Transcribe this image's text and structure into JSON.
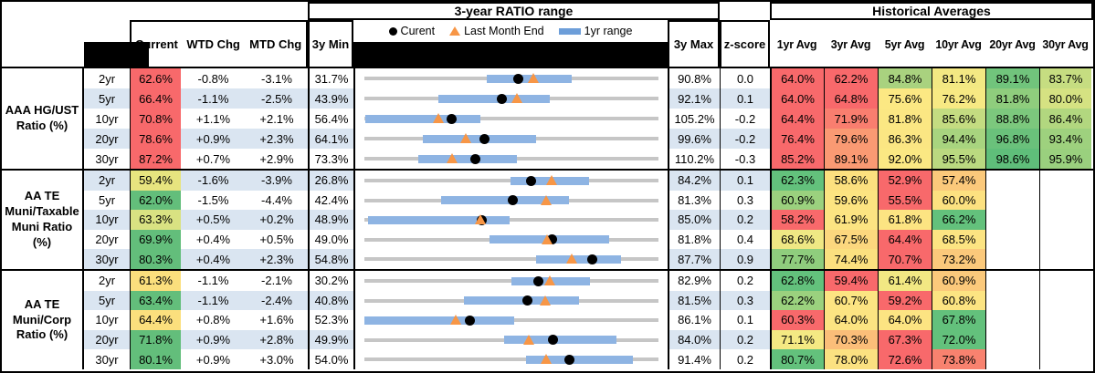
{
  "header": {
    "chart_section_title": "3-year RATIO range",
    "hist_section_title": "Historical Averages",
    "col_current": "Current",
    "col_wtd": "WTD Chg",
    "col_mtd": "MTD Chg",
    "col_3y_min": "3y Min",
    "col_3y_max": "3y Max",
    "col_zscore": "z-score",
    "avg_cols": [
      "1yr Avg",
      "3yr Avg",
      "5yr Avg",
      "10yr Avg",
      "20yr Avg",
      "30yr Avg"
    ],
    "legend": {
      "current": "Curent",
      "last_month": "Last Month End",
      "range": "1yr range"
    }
  },
  "colors": {
    "stripe_blue": "#DAE5F1",
    "range_bar_blue": "#8EB4E3",
    "track_gray": "#C6C6C6",
    "current_dot": "#000000",
    "last_month_triangle": "#F79646",
    "heat_red": "#F8696B",
    "heat_yellow": "#FCE482",
    "heat_green": "#63BE7B"
  },
  "chart_data": {
    "type": "table",
    "embedded_chart_type": "range-dot",
    "description": "Per row: gray track spans 3y Min to 3y Max, blue bar = 1yr range, black dot = Current, orange triangle = Last Month End (Current minus MTD Chg)",
    "groups": [
      {
        "label": "AAA HG/UST Ratio (%)",
        "rows": [
          {
            "tenor": "2yr",
            "current": "62.6%",
            "current_bg": "#F8696B",
            "wtd": "-0.8%",
            "mtd": "-3.1%",
            "min3y": "31.7%",
            "max3y": "90.8%",
            "zscore": "0.0",
            "range1y": [
              56.2,
              73.4
            ],
            "avgs": [
              {
                "v": "64.0%",
                "bg": "#F8696B"
              },
              {
                "v": "62.2%",
                "bg": "#F8696B"
              },
              {
                "v": "84.8%",
                "bg": "#A9D27F"
              },
              {
                "v": "81.1%",
                "bg": "#F3E883"
              },
              {
                "v": "89.1%",
                "bg": "#71C47C"
              },
              {
                "v": "83.7%",
                "bg": "#C6DD81"
              }
            ]
          },
          {
            "tenor": "5yr",
            "current": "66.4%",
            "current_bg": "#F8696B",
            "wtd": "-1.1%",
            "mtd": "-2.5%",
            "min3y": "43.9%",
            "max3y": "92.1%",
            "zscore": "0.1",
            "range1y": [
              56.0,
              74.3
            ],
            "avgs": [
              {
                "v": "64.0%",
                "bg": "#F8696B"
              },
              {
                "v": "64.8%",
                "bg": "#F8696B"
              },
              {
                "v": "75.6%",
                "bg": "#FCE883"
              },
              {
                "v": "76.2%",
                "bg": "#F7E983"
              },
              {
                "v": "81.8%",
                "bg": "#8FCD7D"
              },
              {
                "v": "80.0%",
                "bg": "#D5E282"
              }
            ]
          },
          {
            "tenor": "10yr",
            "current": "70.8%",
            "current_bg": "#F8696B",
            "wtd": "+1.1%",
            "mtd": "+2.1%",
            "min3y": "56.4%",
            "max3y": "105.2%",
            "zscore": "-0.2",
            "range1y": [
              56.5,
              75.6
            ],
            "avgs": [
              {
                "v": "64.4%",
                "bg": "#F8696B"
              },
              {
                "v": "71.9%",
                "bg": "#F97E6F"
              },
              {
                "v": "81.8%",
                "bg": "#FBE783"
              },
              {
                "v": "85.6%",
                "bg": "#C4DC81"
              },
              {
                "v": "88.8%",
                "bg": "#7CC87D"
              },
              {
                "v": "86.4%",
                "bg": "#B2D77F"
              }
            ]
          },
          {
            "tenor": "20yr",
            "current": "78.6%",
            "current_bg": "#F8696B",
            "wtd": "+0.9%",
            "mtd": "+2.3%",
            "min3y": "64.1%",
            "max3y": "99.6%",
            "zscore": "-0.2",
            "range1y": [
              71.1,
              84.8
            ],
            "avgs": [
              {
                "v": "76.4%",
                "bg": "#F8696B"
              },
              {
                "v": "79.6%",
                "bg": "#FA9A73"
              },
              {
                "v": "86.3%",
                "bg": "#FBE683"
              },
              {
                "v": "94.4%",
                "bg": "#A8D47F"
              },
              {
                "v": "96.8%",
                "bg": "#6AC17B"
              },
              {
                "v": "93.4%",
                "bg": "#9ED17E"
              }
            ]
          },
          {
            "tenor": "30yr",
            "current": "87.2%",
            "current_bg": "#F8696B",
            "wtd": "+0.7%",
            "mtd": "+2.9%",
            "min3y": "73.3%",
            "max3y": "110.2%",
            "zscore": "-0.3",
            "range1y": [
              80.0,
              92.4
            ],
            "avgs": [
              {
                "v": "85.2%",
                "bg": "#F8696B"
              },
              {
                "v": "89.1%",
                "bg": "#FA9A73"
              },
              {
                "v": "92.0%",
                "bg": "#FBE883"
              },
              {
                "v": "95.5%",
                "bg": "#BAD980"
              },
              {
                "v": "98.6%",
                "bg": "#5FBE7A"
              },
              {
                "v": "95.9%",
                "bg": "#9AD07E"
              }
            ]
          }
        ]
      },
      {
        "label": "AA TE Muni/Taxable Muni Ratio (%)",
        "rows": [
          {
            "tenor": "2yr",
            "current": "59.4%",
            "current_bg": "#E7E47F",
            "wtd": "-1.6%",
            "mtd": "-3.9%",
            "min3y": "26.8%",
            "max3y": "84.2%",
            "zscore": "0.1",
            "range1y": [
              55.4,
              70.6
            ],
            "avgs": [
              {
                "v": "62.3%",
                "bg": "#63C17C"
              },
              {
                "v": "58.6%",
                "bg": "#FCE07F"
              },
              {
                "v": "52.9%",
                "bg": "#F8696B"
              },
              {
                "v": "57.4%",
                "bg": "#FBC97B"
              },
              {
                "v": "",
                "bg": ""
              },
              {
                "v": "",
                "bg": ""
              }
            ]
          },
          {
            "tenor": "5yr",
            "current": "62.0%",
            "current_bg": "#63BE7B",
            "wtd": "-1.5%",
            "mtd": "-4.4%",
            "min3y": "42.4%",
            "max3y": "81.3%",
            "zscore": "0.3",
            "range1y": [
              52.6,
              69.5
            ],
            "avgs": [
              {
                "v": "60.9%",
                "bg": "#9BD17E"
              },
              {
                "v": "59.6%",
                "bg": "#FCE481"
              },
              {
                "v": "55.5%",
                "bg": "#F8696B"
              },
              {
                "v": "60.0%",
                "bg": "#FCE180"
              },
              {
                "v": "",
                "bg": ""
              },
              {
                "v": "",
                "bg": ""
              }
            ]
          },
          {
            "tenor": "10yr",
            "current": "63.3%",
            "current_bg": "#D9E282",
            "wtd": "+0.5%",
            "mtd": "+0.2%",
            "min3y": "48.9%",
            "max3y": "85.0%",
            "zscore": "0.2",
            "range1y": [
              49.3,
              66.7
            ],
            "avgs": [
              {
                "v": "58.2%",
                "bg": "#F8696B"
              },
              {
                "v": "61.9%",
                "bg": "#FCE482"
              },
              {
                "v": "61.8%",
                "bg": "#FCE482"
              },
              {
                "v": "66.2%",
                "bg": "#63C17C"
              },
              {
                "v": "",
                "bg": ""
              },
              {
                "v": "",
                "bg": ""
              }
            ]
          },
          {
            "tenor": "20yr",
            "current": "69.9%",
            "current_bg": "#63BE7B",
            "wtd": "+0.4%",
            "mtd": "+0.5%",
            "min3y": "49.0%",
            "max3y": "81.8%",
            "zscore": "0.4",
            "range1y": [
              62.9,
              76.3
            ],
            "avgs": [
              {
                "v": "68.6%",
                "bg": "#EFE884"
              },
              {
                "v": "67.5%",
                "bg": "#FCD77E"
              },
              {
                "v": "64.4%",
                "bg": "#F8696B"
              },
              {
                "v": "68.5%",
                "bg": "#FCE482"
              },
              {
                "v": "",
                "bg": ""
              },
              {
                "v": "",
                "bg": ""
              }
            ]
          },
          {
            "tenor": "30yr",
            "current": "80.3%",
            "current_bg": "#63BE7B",
            "wtd": "+0.4%",
            "mtd": "+2.3%",
            "min3y": "54.8%",
            "max3y": "87.7%",
            "zscore": "0.9",
            "range1y": [
              74.0,
              83.5
            ],
            "avgs": [
              {
                "v": "77.7%",
                "bg": "#8FCD7D"
              },
              {
                "v": "74.4%",
                "bg": "#FBE07F"
              },
              {
                "v": "70.7%",
                "bg": "#F8696B"
              },
              {
                "v": "73.2%",
                "bg": "#FBC97B"
              },
              {
                "v": "",
                "bg": ""
              },
              {
                "v": "",
                "bg": ""
              }
            ]
          }
        ]
      },
      {
        "label": "AA TE Muni/Corp Ratio (%)",
        "rows": [
          {
            "tenor": "2yr",
            "current": "61.3%",
            "current_bg": "#FBDF7D",
            "wtd": "-1.1%",
            "mtd": "-2.1%",
            "min3y": "30.2%",
            "max3y": "82.9%",
            "zscore": "0.2",
            "range1y": [
              56.5,
              70.7
            ],
            "avgs": [
              {
                "v": "62.8%",
                "bg": "#63C17C"
              },
              {
                "v": "59.4%",
                "bg": "#F8696B"
              },
              {
                "v": "61.4%",
                "bg": "#F2E883"
              },
              {
                "v": "60.9%",
                "bg": "#FBC97B"
              },
              {
                "v": "",
                "bg": ""
              },
              {
                "v": "",
                "bg": ""
              }
            ]
          },
          {
            "tenor": "5yr",
            "current": "63.4%",
            "current_bg": "#63BE7B",
            "wtd": "-1.1%",
            "mtd": "-2.4%",
            "min3y": "40.8%",
            "max3y": "81.5%",
            "zscore": "0.3",
            "range1y": [
              54.6,
              70.5
            ],
            "avgs": [
              {
                "v": "62.2%",
                "bg": "#9BD17E"
              },
              {
                "v": "60.7%",
                "bg": "#FCE482"
              },
              {
                "v": "59.2%",
                "bg": "#F8696B"
              },
              {
                "v": "60.8%",
                "bg": "#FCE482"
              },
              {
                "v": "",
                "bg": ""
              },
              {
                "v": "",
                "bg": ""
              }
            ]
          },
          {
            "tenor": "10yr",
            "current": "64.4%",
            "current_bg": "#FBDF7D",
            "wtd": "+0.8%",
            "mtd": "+1.6%",
            "min3y": "52.3%",
            "max3y": "86.1%",
            "zscore": "0.1",
            "range1y": [
              52.3,
              69.5
            ],
            "avgs": [
              {
                "v": "60.3%",
                "bg": "#F8696B"
              },
              {
                "v": "64.0%",
                "bg": "#FCE482"
              },
              {
                "v": "64.0%",
                "bg": "#FCE482"
              },
              {
                "v": "67.8%",
                "bg": "#63C17C"
              },
              {
                "v": "",
                "bg": ""
              },
              {
                "v": "",
                "bg": ""
              }
            ]
          },
          {
            "tenor": "20yr",
            "current": "71.8%",
            "current_bg": "#63BE7B",
            "wtd": "+0.9%",
            "mtd": "+2.8%",
            "min3y": "49.9%",
            "max3y": "84.0%",
            "zscore": "0.2",
            "range1y": [
              66.1,
              79.1
            ],
            "avgs": [
              {
                "v": "71.1%",
                "bg": "#F4E983"
              },
              {
                "v": "70.3%",
                "bg": "#FBBE79"
              },
              {
                "v": "67.3%",
                "bg": "#F8696B"
              },
              {
                "v": "72.0%",
                "bg": "#63C17C"
              },
              {
                "v": "",
                "bg": ""
              },
              {
                "v": "",
                "bg": ""
              }
            ]
          },
          {
            "tenor": "30yr",
            "current": "80.1%",
            "current_bg": "#63BE7B",
            "wtd": "+0.9%",
            "mtd": "+3.0%",
            "min3y": "54.0%",
            "max3y": "91.4%",
            "zscore": "0.2",
            "range1y": [
              74.6,
              88.1
            ],
            "avgs": [
              {
                "v": "80.7%",
                "bg": "#63C17C"
              },
              {
                "v": "78.0%",
                "bg": "#FBE181"
              },
              {
                "v": "72.6%",
                "bg": "#F8696B"
              },
              {
                "v": "73.8%",
                "bg": "#F8826F"
              },
              {
                "v": "",
                "bg": ""
              },
              {
                "v": "",
                "bg": ""
              }
            ]
          }
        ]
      }
    ]
  }
}
